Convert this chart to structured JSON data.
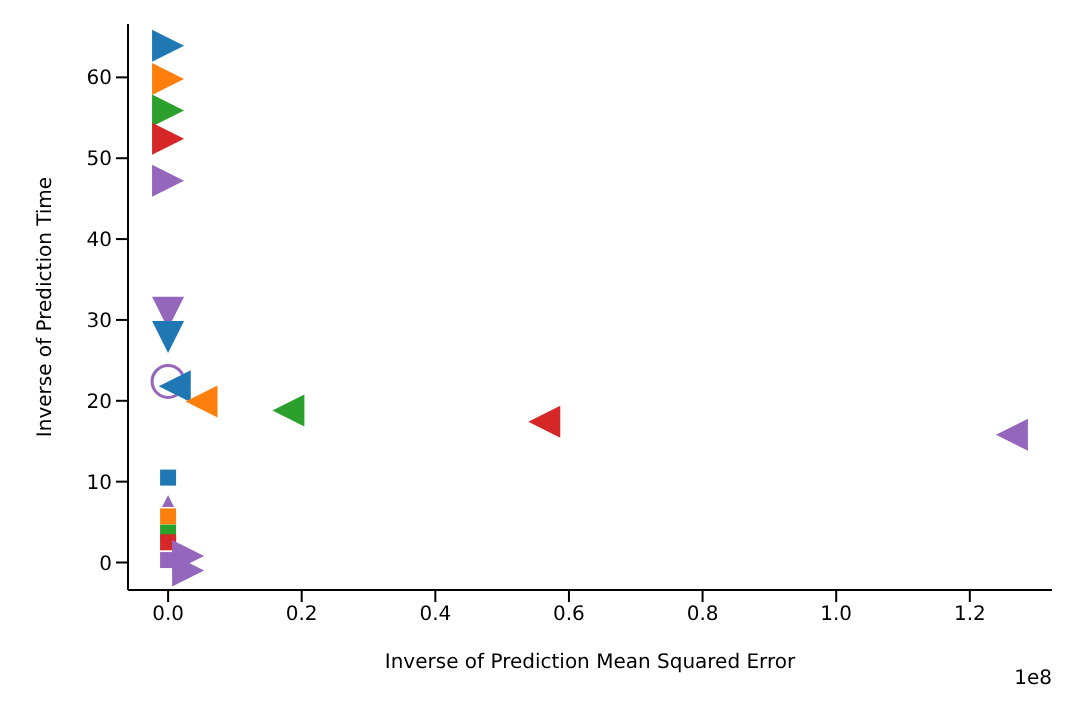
{
  "chart_data": {
    "type": "scatter",
    "xlabel": "Inverse of Prediction Mean Squared Error",
    "ylabel": "Inverse of Prediction Time",
    "annotations": [
      "1e8"
    ],
    "xlim": [
      -0.06,
      1.323
    ],
    "xticks": [
      {
        "value": 0,
        "label": "0.0"
      },
      0.2,
      0.4,
      0.6,
      0.8,
      {
        "value": 1,
        "label": "1.0"
      },
      1.2
    ],
    "ylim": [
      -3.4,
      66.6
    ],
    "yticks": [
      0,
      10,
      20,
      30,
      40,
      50,
      60
    ],
    "grid": false,
    "legend": false,
    "series": [
      {
        "color": "#1f77b4",
        "marker": "triangle-right",
        "x": [
          0
        ],
        "values": [
          63.9
        ]
      },
      {
        "color": "#ff7f0e",
        "marker": "triangle-right",
        "x": [
          0
        ],
        "values": [
          59.8
        ]
      },
      {
        "color": "#2ca02c",
        "marker": "triangle-right",
        "x": [
          0
        ],
        "values": [
          55.9
        ]
      },
      {
        "color": "#d62728",
        "marker": "triangle-right",
        "x": [
          0
        ],
        "values": [
          52.4
        ]
      },
      {
        "color": "#9467bd",
        "marker": "triangle-right",
        "x": [
          0
        ],
        "values": [
          47.2
        ]
      },
      {
        "color": "#9467bd",
        "marker": "triangle-down",
        "x": [
          0
        ],
        "values": [
          30.9
        ]
      },
      {
        "color": "#1f77b4",
        "marker": "triangle-down",
        "x": [
          0
        ],
        "values": [
          27.9
        ]
      },
      {
        "color": "#9467bd",
        "marker": "circle",
        "x": [
          0
        ],
        "values": [
          22.4
        ]
      },
      {
        "color": "#1f77b4",
        "marker": "triangle-left",
        "x": [
          0.01
        ],
        "values": [
          21.8
        ]
      },
      {
        "color": "#ff7f0e",
        "marker": "triangle-left",
        "x": [
          0.05
        ],
        "values": [
          19.9
        ]
      },
      {
        "color": "#2ca02c",
        "marker": "triangle-left",
        "x": [
          0.18
        ],
        "values": [
          18.8
        ]
      },
      {
        "color": "#d62728",
        "marker": "triangle-left",
        "x": [
          0.563
        ],
        "values": [
          17.4
        ]
      },
      {
        "color": "#9467bd",
        "marker": "triangle-left",
        "x": [
          1.263
        ],
        "values": [
          15.8
        ]
      },
      {
        "color": "#1f77b4",
        "marker": "square",
        "x": [
          0
        ],
        "values": [
          10.5
        ]
      },
      {
        "color": "#9467bd",
        "marker": "triangle",
        "x": [
          0
        ],
        "values": [
          7.6
        ]
      },
      {
        "color": "#ff7f0e",
        "marker": "square",
        "x": [
          0
        ],
        "values": [
          5.7
        ]
      },
      {
        "color": "#2ca02c",
        "marker": "square",
        "x": [
          0
        ],
        "values": [
          3.7
        ]
      },
      {
        "color": "#d62728",
        "marker": "square",
        "x": [
          0
        ],
        "values": [
          2.5
        ]
      },
      {
        "color": "#9467bd",
        "marker": "square",
        "x": [
          0
        ],
        "values": [
          0.3
        ]
      },
      {
        "color": "#9467bd",
        "marker": "triangle-right",
        "x": [
          0.03,
          0.03
        ],
        "values": [
          0.8,
          -1.0
        ]
      }
    ]
  }
}
